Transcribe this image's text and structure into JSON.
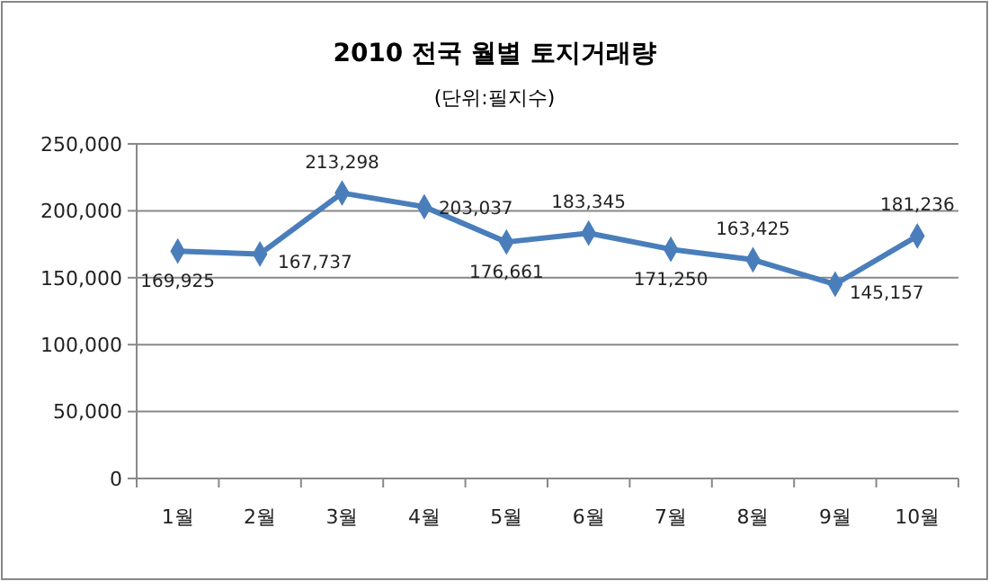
{
  "chart_data": {
    "type": "line",
    "title": "2010 전국 월별 토지거래량",
    "subtitle": "(단위:필지수)",
    "categories": [
      "1월",
      "2월",
      "3월",
      "4월",
      "5월",
      "6월",
      "7월",
      "8월",
      "9월",
      "10월"
    ],
    "series": [
      {
        "color": "#4a7ebb",
        "values": [
          169925,
          167737,
          213298,
          203037,
          176661,
          183345,
          171250,
          163425,
          145157,
          181236
        ],
        "value_labels": [
          "169,925",
          "167,737",
          "213,298",
          "203,037",
          "176,661",
          "183,345",
          "171,250",
          "163,425",
          "145,157",
          "181,236"
        ]
      }
    ],
    "ylim": [
      0,
      250000
    ],
    "yticks": [
      {
        "value": 0,
        "label": "0"
      },
      {
        "value": 50000,
        "label": "50,000"
      },
      {
        "value": 100000,
        "label": "100,000"
      },
      {
        "value": 150000,
        "label": "150,000"
      },
      {
        "value": 200000,
        "label": "200,000"
      },
      {
        "value": 250000,
        "label": "250,000"
      }
    ],
    "grid": "y",
    "marker": "diamond",
    "line_style": "solid"
  }
}
